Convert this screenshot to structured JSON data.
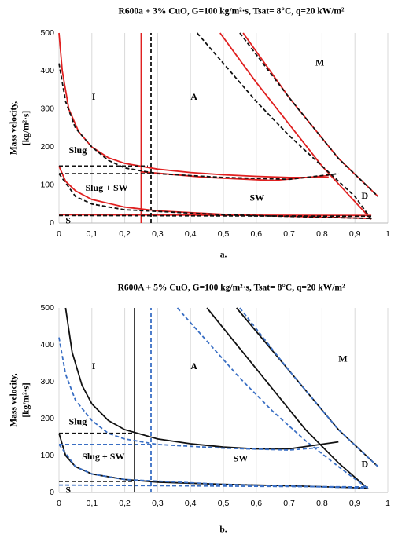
{
  "chart_data": [
    {
      "type": "line",
      "title": "R600a + 3% CuO, G=100 kg/m²·s, Tsat= 8°C, q=20 kW/m²",
      "y_label": [
        "Mass velocity,",
        "[kg/m²·s]"
      ],
      "caption": "a.",
      "xlim": [
        0,
        1
      ],
      "ylim": [
        0,
        500
      ],
      "grid": "x",
      "xticks": [
        0,
        {
          "value": 0.1,
          "label": "0,1"
        },
        {
          "value": 0.2,
          "label": "0,2"
        },
        {
          "value": 0.3,
          "label": "0,3"
        },
        {
          "value": 0.4,
          "label": "0,4"
        },
        {
          "value": 0.5,
          "label": "0,5"
        },
        {
          "value": 0.6,
          "label": "0,6"
        },
        {
          "value": 0.7,
          "label": "0,7"
        },
        {
          "value": 0.8,
          "label": "0,8"
        },
        {
          "value": 0.9,
          "label": "0,9"
        },
        1
      ],
      "yticks": [
        0,
        100,
        200,
        300,
        400,
        500
      ],
      "annotations": [
        "I",
        "A",
        "M",
        "Slug",
        "Slug + SW",
        "SW",
        "D",
        "S"
      ],
      "series": [
        {
          "color": "#e02020",
          "dashed": false,
          "x": [
            0,
            0.01,
            0.03,
            0.06,
            0.1,
            0.15,
            0.2,
            0.3,
            0.4,
            0.5,
            0.6,
            0.7,
            0.82
          ],
          "values": [
            500,
            400,
            300,
            240,
            200,
            172,
            157,
            142,
            133,
            127,
            123,
            120,
            120
          ]
        },
        {
          "color": "#e02020",
          "dashed": false,
          "x": [
            0.25,
            0.25
          ],
          "values": [
            0,
            500
          ]
        },
        {
          "color": "#e02020",
          "dashed": false,
          "x": [
            0,
            0.02,
            0.05,
            0.1,
            0.2,
            0.3,
            0.5,
            0.7,
            0.95
          ],
          "values": [
            150,
            110,
            85,
            62,
            42,
            32,
            23,
            18,
            12
          ]
        },
        {
          "color": "#e02020",
          "dashed": false,
          "x": [
            0,
            0.95
          ],
          "values": [
            22,
            20
          ]
        },
        {
          "color": "#e02020",
          "dashed": false,
          "x": [
            0.49,
            0.6,
            0.7,
            0.8,
            0.88,
            0.95
          ],
          "values": [
            500,
            370,
            260,
            150,
            75,
            10
          ]
        },
        {
          "color": "#e02020",
          "dashed": false,
          "x": [
            0.56,
            0.7,
            0.85,
            0.97
          ],
          "values": [
            500,
            330,
            170,
            70
          ]
        },
        {
          "color": "#e02020",
          "dashed": false,
          "x": [
            0.25,
            0.45,
            0.65,
            0.82
          ],
          "values": [
            135,
            120,
            112,
            125
          ]
        },
        {
          "color": "#111111",
          "dashed": true,
          "x": [
            0,
            0.02,
            0.05,
            0.1,
            0.15,
            0.2,
            0.3,
            0.5,
            0.7,
            0.85
          ],
          "values": [
            420,
            320,
            250,
            200,
            165,
            145,
            130,
            120,
            115,
            130
          ]
        },
        {
          "color": "#111111",
          "dashed": true,
          "x": [
            0.28,
            0.28
          ],
          "values": [
            0,
            500
          ]
        },
        {
          "color": "#111111",
          "dashed": true,
          "x": [
            0,
            0.27
          ],
          "values": [
            150,
            150
          ]
        },
        {
          "color": "#111111",
          "dashed": true,
          "x": [
            0,
            0.28
          ],
          "values": [
            130,
            130
          ]
        },
        {
          "color": "#111111",
          "dashed": true,
          "x": [
            0,
            0.05,
            0.1,
            0.2,
            0.5,
            0.95
          ],
          "values": [
            130,
            70,
            50,
            35,
            22,
            12
          ]
        },
        {
          "color": "#111111",
          "dashed": true,
          "x": [
            0,
            0.95
          ],
          "values": [
            20,
            18
          ]
        },
        {
          "color": "#111111",
          "dashed": true,
          "x": [
            0.42,
            0.5,
            0.6,
            0.7,
            0.8,
            0.9,
            0.95
          ],
          "values": [
            500,
            420,
            320,
            230,
            150,
            70,
            10
          ]
        },
        {
          "color": "#111111",
          "dashed": true,
          "x": [
            0.55,
            0.7,
            0.85,
            0.97
          ],
          "values": [
            500,
            330,
            170,
            70
          ]
        }
      ]
    },
    {
      "type": "line",
      "title": "R600A + 5% CuO, G=100 kg/m²·s, Tsat= 8°C, q=20 kW/m²",
      "y_label": [
        "Mass velocity,",
        "[kg/m²·s]"
      ],
      "caption": "b.",
      "xlim": [
        0,
        1
      ],
      "ylim": [
        0,
        500
      ],
      "grid": "x",
      "xticks": [
        0,
        {
          "value": 0.1,
          "label": "0,1"
        },
        {
          "value": 0.2,
          "label": "0,2"
        },
        {
          "value": 0.3,
          "label": "0,3"
        },
        {
          "value": 0.4,
          "label": "0,4"
        },
        {
          "value": 0.5,
          "label": "0,5"
        },
        {
          "value": 0.6,
          "label": "0,6"
        },
        {
          "value": 0.7,
          "label": "0,7"
        },
        {
          "value": 0.8,
          "label": "0,8"
        },
        {
          "value": 0.9,
          "label": "0,9"
        },
        1
      ],
      "yticks": [
        0,
        100,
        200,
        300,
        400,
        500
      ],
      "annotations": [
        "I",
        "A",
        "M",
        "Slug",
        "Slug + SW",
        "SW",
        "D",
        "S"
      ],
      "series": [
        {
          "color": "#111111",
          "dashed": false,
          "x": [
            0.02,
            0.04,
            0.07,
            0.1,
            0.15,
            0.2,
            0.3,
            0.4,
            0.5,
            0.6,
            0.7,
            0.85
          ],
          "values": [
            500,
            380,
            290,
            240,
            195,
            170,
            145,
            132,
            123,
            118,
            118,
            137
          ]
        },
        {
          "color": "#111111",
          "dashed": false,
          "x": [
            0.23,
            0.23
          ],
          "values": [
            0,
            500
          ]
        },
        {
          "color": "#111111",
          "dashed": false,
          "x": [
            0,
            0.02,
            0.05,
            0.1,
            0.2,
            0.3,
            0.5,
            0.7,
            0.94
          ],
          "values": [
            160,
            100,
            70,
            50,
            35,
            28,
            22,
            18,
            12
          ]
        },
        {
          "color": "#111111",
          "dashed": false,
          "x": [
            0.45,
            0.55,
            0.65,
            0.75,
            0.85,
            0.94
          ],
          "values": [
            500,
            390,
            280,
            170,
            80,
            10
          ]
        },
        {
          "color": "#111111",
          "dashed": false,
          "x": [
            0.54,
            0.7,
            0.85,
            0.97
          ],
          "values": [
            500,
            330,
            170,
            70
          ]
        },
        {
          "color": "#111111",
          "dashed": true,
          "x": [
            0,
            0.23
          ],
          "values": [
            160,
            160
          ]
        },
        {
          "color": "#111111",
          "dashed": true,
          "x": [
            0,
            0.23
          ],
          "values": [
            30,
            30
          ]
        },
        {
          "color": "#3a6fc4",
          "dashed": true,
          "x": [
            0,
            0.02,
            0.05,
            0.1,
            0.15,
            0.2,
            0.3,
            0.5,
            0.7,
            0.8
          ],
          "values": [
            420,
            320,
            250,
            195,
            160,
            145,
            130,
            120,
            115,
            122
          ]
        },
        {
          "color": "#3a6fc4",
          "dashed": true,
          "x": [
            0.28,
            0.28
          ],
          "values": [
            0,
            500
          ]
        },
        {
          "color": "#3a6fc4",
          "dashed": true,
          "x": [
            0,
            0.28
          ],
          "values": [
            130,
            130
          ]
        },
        {
          "color": "#3a6fc4",
          "dashed": true,
          "x": [
            0,
            0.05,
            0.1,
            0.2,
            0.5,
            0.94
          ],
          "values": [
            130,
            70,
            50,
            35,
            22,
            12
          ]
        },
        {
          "color": "#3a6fc4",
          "dashed": true,
          "x": [
            0,
            0.94
          ],
          "values": [
            20,
            15
          ]
        },
        {
          "color": "#3a6fc4",
          "dashed": true,
          "x": [
            0.36,
            0.45,
            0.55,
            0.65,
            0.75,
            0.85,
            0.94
          ],
          "values": [
            500,
            410,
            310,
            220,
            140,
            70,
            10
          ]
        },
        {
          "color": "#3a6fc4",
          "dashed": true,
          "x": [
            0.55,
            0.7,
            0.85,
            0.97
          ],
          "values": [
            500,
            330,
            170,
            70
          ]
        }
      ]
    }
  ]
}
